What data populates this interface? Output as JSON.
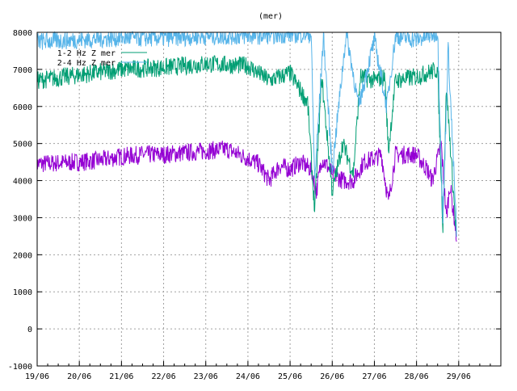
{
  "chart_data": {
    "type": "line",
    "title": "(mer)",
    "xlabel": "",
    "ylabel": "",
    "ylim": [
      -1000,
      8000
    ],
    "xlim": [
      "19/06 00:00",
      "30/06 00:00"
    ],
    "yticks": [
      -1000,
      0,
      1000,
      2000,
      3000,
      4000,
      5000,
      6000,
      7000,
      8000
    ],
    "xticks": [
      "19/06",
      "20/06",
      "21/06",
      "22/06",
      "23/06",
      "24/06",
      "25/06",
      "26/06",
      "27/06",
      "28/06",
      "29/06"
    ],
    "grid": true,
    "legend_placement": "top-left",
    "series": [
      {
        "color": "#9400d3",
        "points": [
          [
            "19/06 00:00",
            4400
          ],
          [
            "19/12 00:00",
            4450
          ],
          [
            "20/06 00:00",
            4500
          ],
          [
            "20/06 12:00",
            4550
          ],
          [
            "21/06 00:00",
            4650
          ],
          [
            "21/06 12:00",
            4700
          ],
          [
            "22/06 00:00",
            4700
          ],
          [
            "22/06 12:00",
            4750
          ],
          [
            "23/06 00:00",
            4800
          ],
          [
            "23/06 12:00",
            4850
          ],
          [
            "24/06 00:00",
            4600
          ],
          [
            "24/06 06:00",
            4450
          ],
          [
            "24/06 12:00",
            4000
          ],
          [
            "24/06 18:00",
            4400
          ],
          [
            "25/06 00:00",
            4300
          ],
          [
            "25/06 06:00",
            4500
          ],
          [
            "25/06 12:00",
            4300
          ],
          [
            "25/06 15:00",
            3700
          ],
          [
            "25/06 18:00",
            4600
          ],
          [
            "26/06 00:00",
            4200
          ],
          [
            "26/06 06:00",
            4000
          ],
          [
            "26/06 12:00",
            4000
          ],
          [
            "26/06 18:00",
            4500
          ],
          [
            "27/06 00:00",
            4600
          ],
          [
            "27/06 04:00",
            4700
          ],
          [
            "27/06 08:00",
            3400
          ],
          [
            "27/06 12:00",
            4700
          ],
          [
            "28/06 00:00",
            4700
          ],
          [
            "28/06 06:00",
            4300
          ],
          [
            "28/06 09:00",
            4000
          ],
          [
            "28/06 14:00",
            5000
          ],
          [
            "28/06 17:00",
            3000
          ],
          [
            "28/06 19:00",
            3900
          ],
          [
            "28/06 23:00",
            2400
          ]
        ]
      },
      {
        "name": "1-2 Hz Z mer",
        "color": "#009e73",
        "points": [
          [
            "19/06 00:00",
            6700
          ],
          [
            "20/06 00:00",
            6850
          ],
          [
            "21/06 00:00",
            7000
          ],
          [
            "22/06 00:00",
            7050
          ],
          [
            "23/06 00:00",
            7150
          ],
          [
            "24/06 00:00",
            7100
          ],
          [
            "24/06 12:00",
            6700
          ],
          [
            "25/06 00:00",
            6900
          ],
          [
            "25/06 10:00",
            6100
          ],
          [
            "25/06 14:00",
            3200
          ],
          [
            "25/06 18:00",
            6800
          ],
          [
            "26/06 00:00",
            3700
          ],
          [
            "26/06 06:00",
            5000
          ],
          [
            "26/06 12:00",
            4200
          ],
          [
            "26/06 16:00",
            6800
          ],
          [
            "27/06 00:00",
            6700
          ],
          [
            "27/06 06:00",
            6800
          ],
          [
            "27/06 08:00",
            4800
          ],
          [
            "27/06 12:00",
            6700
          ],
          [
            "28/06 00:00",
            6800
          ],
          [
            "28/06 12:00",
            7000
          ],
          [
            "28/06 15:00",
            2800
          ],
          [
            "28/06 17:00",
            6500
          ],
          [
            "28/06 23:00",
            2300
          ]
        ]
      },
      {
        "name": "2-4 Hz Z mer",
        "color": "#56b4e9",
        "points": [
          [
            "19/06 00:00",
            7750
          ],
          [
            "20/06 00:00",
            7800
          ],
          [
            "21/06 00:00",
            7850
          ],
          [
            "22/06 00:00",
            7850
          ],
          [
            "23/06 00:00",
            7900
          ],
          [
            "24/06 00:00",
            7900
          ],
          [
            "25/06 00:00",
            7950
          ],
          [
            "25/06 12:00",
            7950
          ],
          [
            "25/06 14:00",
            4000
          ],
          [
            "25/06 19:00",
            7900
          ],
          [
            "26/06 00:00",
            4300
          ],
          [
            "26/06 08:00",
            8000
          ],
          [
            "26/06 15:00",
            6000
          ],
          [
            "27/06 00:00",
            7800
          ],
          [
            "27/06 07:00",
            6000
          ],
          [
            "27/06 12:00",
            7900
          ],
          [
            "28/06 00:00",
            7800
          ],
          [
            "28/06 12:00",
            8000
          ],
          [
            "28/06 15:00",
            3000
          ],
          [
            "28/06 18:00",
            7600
          ],
          [
            "28/06 23:00",
            2400
          ]
        ]
      }
    ]
  }
}
